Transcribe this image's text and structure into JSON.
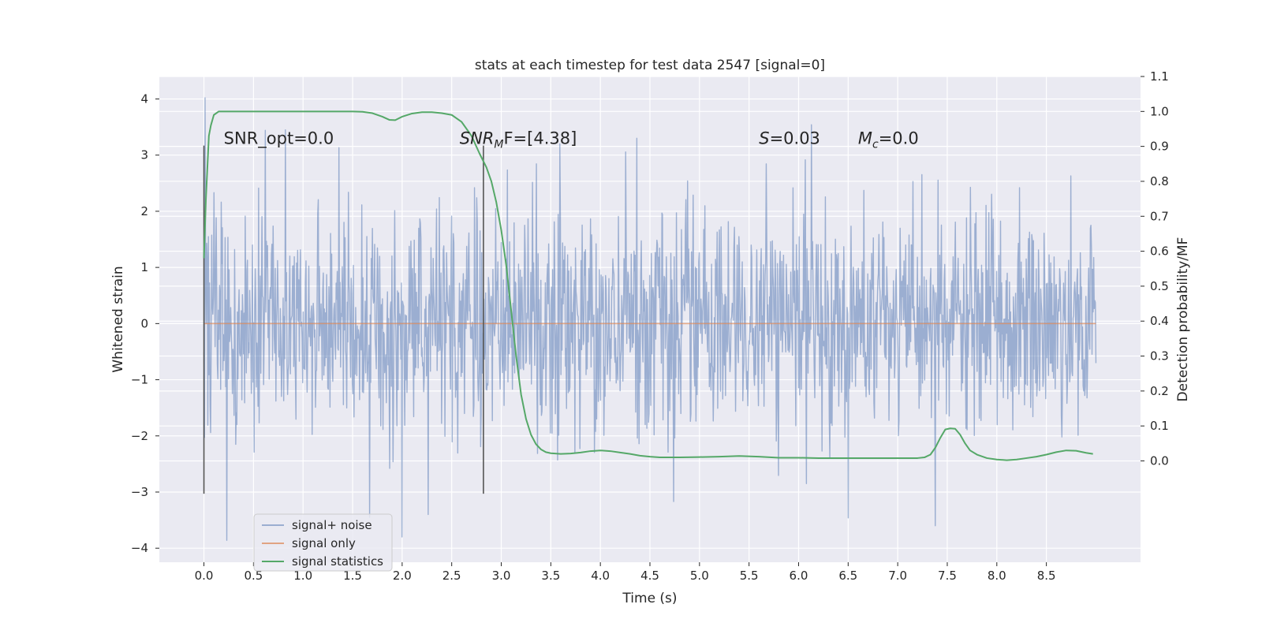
{
  "chart_data": {
    "type": "line",
    "title": "stats at each timestep for test data 2547 [signal=0]",
    "xlabel": "Time (s)",
    "ylabel": "Whitened strain",
    "y2label": "Detection probability/MF",
    "xlim": [
      -0.45,
      9.45
    ],
    "ylim": [
      -4.25,
      4.4
    ],
    "y2lim": [
      -0.29,
      1.1
    ],
    "xticks": [
      0.0,
      0.5,
      1.0,
      1.5,
      2.0,
      2.5,
      3.0,
      3.5,
      4.0,
      4.5,
      5.0,
      5.5,
      6.0,
      6.5,
      7.0,
      7.5,
      8.0,
      8.5
    ],
    "xticklabels": [
      "0.0",
      "0.5",
      "1.0",
      "1.5",
      "2.0",
      "2.5",
      "3.0",
      "3.5",
      "4.0",
      "4.5",
      "5.0",
      "5.5",
      "6.0",
      "6.5",
      "7.0",
      "7.5",
      "8.0",
      "8.5"
    ],
    "yticks": [
      4,
      3,
      2,
      1,
      0,
      -1,
      -2,
      -3,
      -4
    ],
    "yticklabels": [
      "4",
      "3",
      "2",
      "1",
      "0",
      "−1",
      "−2",
      "−3",
      "−4"
    ],
    "y2ticks": [
      1.1,
      1.0,
      0.9,
      0.8,
      0.7,
      0.6,
      0.5,
      0.4,
      0.3,
      0.2,
      0.1,
      0.0
    ],
    "y2ticklabels": [
      "1.1",
      "1.0",
      "0.9",
      "0.8",
      "0.7",
      "0.6",
      "0.5",
      "0.4",
      "0.3",
      "0.2",
      "0.1",
      "0.0"
    ],
    "grid": true,
    "legend_position": "lower-left",
    "annotations": [
      {
        "text": "SNR_opt=0.0",
        "x": 0.2,
        "y": 3.2
      },
      {
        "text": "SNR_MF=[4.38]",
        "x": 2.58,
        "y": 3.2,
        "math": true,
        "base": "SNR",
        "sub": "M",
        "after": "F=[4.38]"
      },
      {
        "text": "S=0.03",
        "x": 5.6,
        "y": 3.2,
        "math": true,
        "base": "S",
        "sub": "",
        "after": "=0.03"
      },
      {
        "text": "M_c=0.0",
        "x": 6.6,
        "y": 3.2,
        "math": true,
        "base": "M",
        "sub": "c",
        "after": "=0.0"
      }
    ],
    "vlines": [
      {
        "x": 0.0,
        "ymin": -3.03,
        "ymax": 3.17
      },
      {
        "x": 2.82,
        "ymin": -3.03,
        "ymax": 3.17
      }
    ],
    "series": [
      {
        "name": "signal+ noise",
        "color": "#4c72b0",
        "alpha": 0.5,
        "axis": "left",
        "description": "dense noise-like whitened strain samples spanning t=0 to 9.0 s, mostly within about ±1.9 with peaks near ±3.5",
        "x_range": [
          0.0,
          9.0
        ],
        "typical_envelope": [
          -1.9,
          1.9
        ],
        "peaks": [
          [
            0.01,
            4.02
          ],
          [
            0.23,
            -3.86
          ],
          [
            0.62,
            3.44
          ],
          [
            0.82,
            3.45
          ],
          [
            1.67,
            -3.45
          ],
          [
            2.0,
            -3.8
          ],
          [
            2.26,
            -3.4
          ],
          [
            4.37,
            3.3
          ],
          [
            6.13,
            3.54
          ],
          [
            6.5,
            -3.46
          ],
          [
            7.38,
            -3.6
          ]
        ]
      },
      {
        "name": "signal only",
        "color": "#dd8452",
        "axis": "left",
        "x": [
          0.0,
          9.0
        ],
        "y": [
          0.0,
          0.0
        ]
      },
      {
        "name": "signal statistics",
        "color": "#55a868",
        "axis": "right",
        "x": [
          0.0,
          0.02,
          0.05,
          0.07,
          0.1,
          0.15,
          0.2,
          0.3,
          0.4,
          0.6,
          0.8,
          1.0,
          1.2,
          1.4,
          1.5,
          1.6,
          1.7,
          1.8,
          1.87,
          1.93,
          2.0,
          2.1,
          2.2,
          2.3,
          2.4,
          2.5,
          2.6,
          2.7,
          2.78,
          2.85,
          2.9,
          2.95,
          3.0,
          3.05,
          3.1,
          3.15,
          3.2,
          3.25,
          3.3,
          3.35,
          3.4,
          3.45,
          3.5,
          3.6,
          3.7,
          3.8,
          3.9,
          4.0,
          4.1,
          4.2,
          4.3,
          4.4,
          4.5,
          4.6,
          4.8,
          5.0,
          5.2,
          5.4,
          5.6,
          5.8,
          6.0,
          6.2,
          6.4,
          6.6,
          6.8,
          7.0,
          7.1,
          7.2,
          7.27,
          7.33,
          7.38,
          7.43,
          7.48,
          7.53,
          7.58,
          7.63,
          7.68,
          7.73,
          7.8,
          7.9,
          8.0,
          8.1,
          8.2,
          8.3,
          8.4,
          8.5,
          8.6,
          8.7,
          8.8,
          8.9,
          8.97
        ],
        "y": [
          0.58,
          0.75,
          0.93,
          0.96,
          0.99,
          1.0,
          1.0,
          1.0,
          1.0,
          1.0,
          1.0,
          1.0,
          1.0,
          1.0,
          1.0,
          0.999,
          0.995,
          0.985,
          0.976,
          0.975,
          0.985,
          0.994,
          0.998,
          0.998,
          0.995,
          0.99,
          0.97,
          0.93,
          0.88,
          0.84,
          0.8,
          0.74,
          0.66,
          0.56,
          0.43,
          0.3,
          0.19,
          0.12,
          0.075,
          0.048,
          0.033,
          0.025,
          0.022,
          0.02,
          0.021,
          0.024,
          0.028,
          0.03,
          0.028,
          0.024,
          0.02,
          0.015,
          0.012,
          0.01,
          0.01,
          0.011,
          0.012,
          0.014,
          0.012,
          0.009,
          0.009,
          0.008,
          0.008,
          0.008,
          0.008,
          0.008,
          0.008,
          0.008,
          0.01,
          0.018,
          0.038,
          0.066,
          0.09,
          0.093,
          0.092,
          0.075,
          0.05,
          0.03,
          0.018,
          0.008,
          0.004,
          0.002,
          0.004,
          0.008,
          0.012,
          0.018,
          0.025,
          0.03,
          0.029,
          0.023,
          0.02
        ]
      }
    ]
  }
}
